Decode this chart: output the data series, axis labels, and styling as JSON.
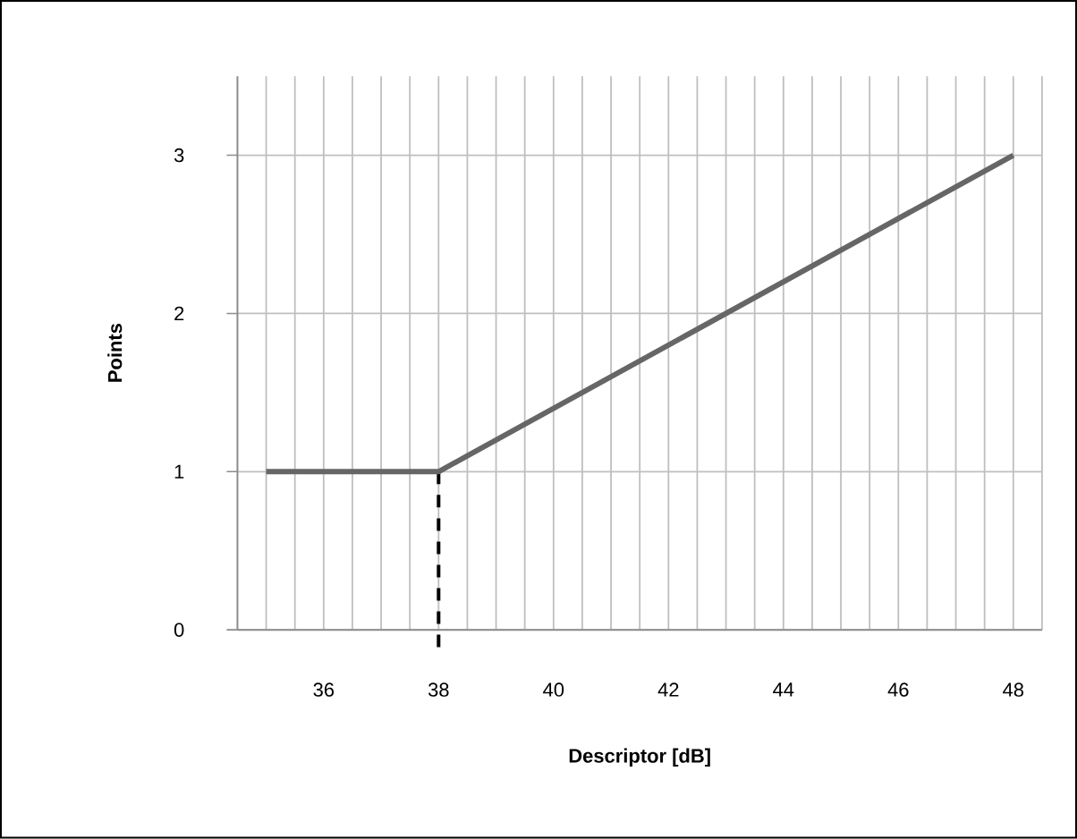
{
  "chart_data": {
    "type": "line",
    "xlabel": "Descriptor [dB]",
    "ylabel": "Points",
    "xlim": [
      34.5,
      48.5
    ],
    "ylim": [
      0,
      3.5
    ],
    "xticks": [
      {
        "value": 35,
        "label": null
      },
      {
        "value": 35.5,
        "label": null
      },
      36,
      {
        "value": 36.5,
        "label": null
      },
      {
        "value": 37,
        "label": null
      },
      {
        "value": 37.5,
        "label": null
      },
      38,
      {
        "value": 38.5,
        "label": null
      },
      {
        "value": 39,
        "label": null
      },
      {
        "value": 39.5,
        "label": null
      },
      40,
      {
        "value": 40.5,
        "label": null
      },
      {
        "value": 41,
        "label": null
      },
      {
        "value": 41.5,
        "label": null
      },
      42,
      {
        "value": 42.5,
        "label": null
      },
      {
        "value": 43,
        "label": null
      },
      {
        "value": 43.5,
        "label": null
      },
      44,
      {
        "value": 44.5,
        "label": null
      },
      {
        "value": 45,
        "label": null
      },
      {
        "value": 45.5,
        "label": null
      },
      46,
      {
        "value": 46.5,
        "label": null
      },
      {
        "value": 47,
        "label": null
      },
      {
        "value": 47.5,
        "label": null
      },
      48,
      {
        "value": 48.5,
        "label": null
      }
    ],
    "yticks": [
      0,
      1,
      2,
      3
    ],
    "grid": true,
    "marker": "none",
    "ref_lines": [
      {
        "axis": "x",
        "value": 38,
        "color": "#000000",
        "line_style": "dashed"
      }
    ],
    "series": [
      {
        "color": "#666666",
        "x": [
          35,
          38,
          48
        ],
        "values": [
          1,
          1,
          3
        ],
        "line_style": "solid"
      }
    ]
  }
}
